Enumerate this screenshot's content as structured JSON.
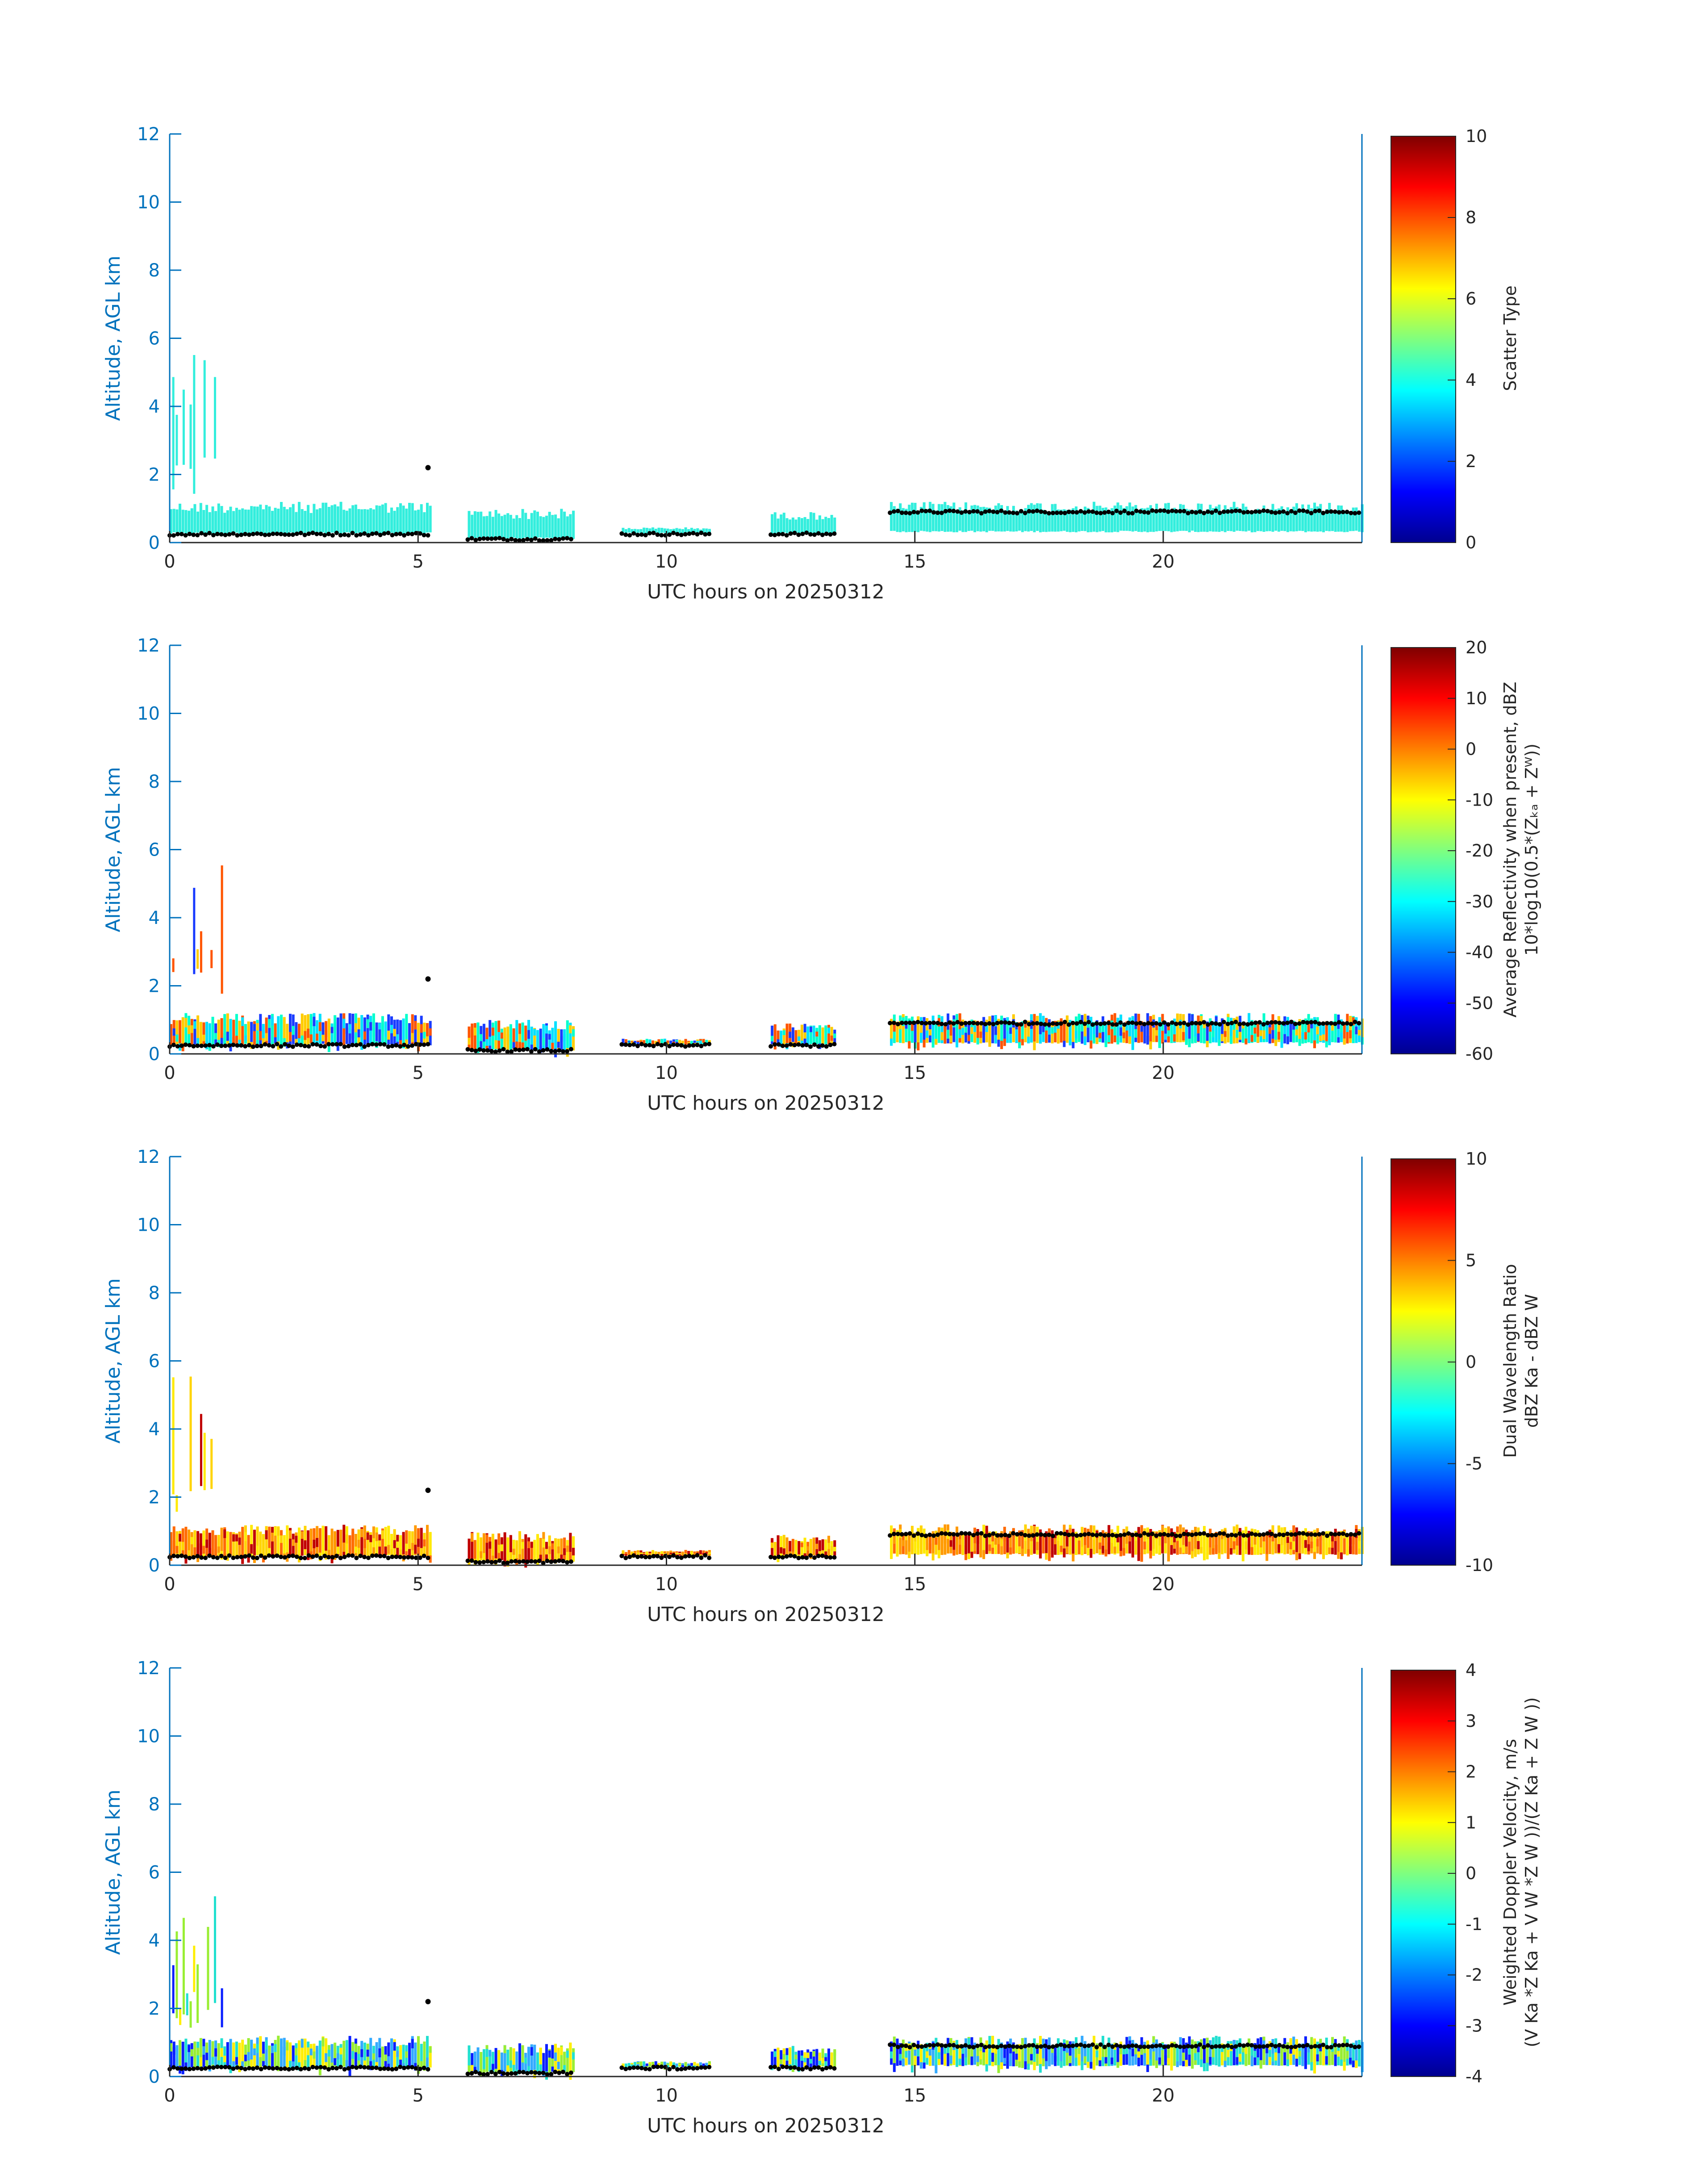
{
  "chart_data": [
    {
      "type": "heatmap",
      "xlabel": "UTC hours on 20250312",
      "ylabel": "Altitude, AGL km",
      "xlim": [
        0,
        24
      ],
      "ylim": [
        0,
        12
      ],
      "xticks": [
        "0",
        "5",
        "10",
        "15",
        "20"
      ],
      "yticks": [
        "0",
        "2",
        "4",
        "6",
        "8",
        "10",
        "12"
      ],
      "colorbar": {
        "label_lines": [
          "Scatter Type"
        ],
        "ticks": [
          "0",
          "2",
          "4",
          "6",
          "8",
          "10"
        ],
        "range": [
          0,
          10
        ],
        "colormap": "jet"
      }
    },
    {
      "type": "heatmap",
      "xlabel": "UTC hours on 20250312",
      "ylabel": "Altitude, AGL km",
      "xlim": [
        0,
        24
      ],
      "ylim": [
        0,
        12
      ],
      "xticks": [
        "0",
        "5",
        "10",
        "15",
        "20"
      ],
      "yticks": [
        "0",
        "2",
        "4",
        "6",
        "8",
        "10",
        "12"
      ],
      "colorbar": {
        "label_lines": [
          "Average Reflectivity when present, dBZ",
          "10*log10(0.5*(Zₖₐ + Zᵂ))"
        ],
        "ticks": [
          "-60",
          "-50",
          "-40",
          "-30",
          "-20",
          "-10",
          "0",
          "10",
          "20"
        ],
        "range": [
          -60,
          20
        ],
        "colormap": "jet"
      }
    },
    {
      "type": "heatmap",
      "xlabel": "UTC hours on 20250312",
      "ylabel": "Altitude, AGL km",
      "xlim": [
        0,
        24
      ],
      "ylim": [
        0,
        12
      ],
      "xticks": [
        "0",
        "5",
        "10",
        "15",
        "20"
      ],
      "yticks": [
        "0",
        "2",
        "4",
        "6",
        "8",
        "10",
        "12"
      ],
      "colorbar": {
        "label_lines": [
          "Dual Wavelength Ratio",
          "dBZ Ka - dBZ W"
        ],
        "ticks": [
          "-10",
          "-5",
          "0",
          "5",
          "10"
        ],
        "range": [
          -10,
          10
        ],
        "colormap": "jet"
      }
    },
    {
      "type": "heatmap",
      "xlabel": "UTC hours on 20250312",
      "ylabel": "Altitude, AGL km",
      "xlim": [
        0,
        24
      ],
      "ylim": [
        0,
        12
      ],
      "xticks": [
        "0",
        "5",
        "10",
        "15",
        "20"
      ],
      "yticks": [
        "0",
        "2",
        "4",
        "6",
        "8",
        "10",
        "12"
      ],
      "colorbar": {
        "label_lines": [
          "Weighted Doppler Velocity, m/s",
          "(V Ka *Z Ka + V W *Z W ))/(Z Ka + Z W ))"
        ],
        "ticks": [
          "-4",
          "-3",
          "-2",
          "-1",
          "0",
          "1",
          "2",
          "3",
          "4"
        ],
        "range": [
          -4,
          4
        ],
        "colormap": "jet"
      }
    }
  ],
  "echo_segments": [
    {
      "t0": 0.0,
      "t1": 5.25,
      "base_km": 0.25,
      "top_km": 1.2
    },
    {
      "t0": 6.0,
      "t1": 8.1,
      "base_km": 0.1,
      "top_km": 1.0
    },
    {
      "t0": 9.1,
      "t1": 10.9,
      "base_km": 0.25,
      "top_km": 0.45
    },
    {
      "t0": 12.1,
      "t1": 13.4,
      "base_km": 0.25,
      "top_km": 0.9
    },
    {
      "t0": 14.5,
      "t1": 24.0,
      "base_km": 0.3,
      "top_km": 1.2
    }
  ],
  "plume": {
    "t0": 0.05,
    "t1": 1.1,
    "top_km": 6.3
  },
  "panel_colors": {
    "scatter": "#33eedd",
    "reflectivity": [
      "#1a3cff",
      "#00e0ff",
      "#ffcc00",
      "#ff5500",
      "#00ffcc"
    ],
    "dwr": [
      "#ffd400",
      "#ff9a00",
      "#ffea00",
      "#ff6a00",
      "#c00000"
    ],
    "velocity": [
      "#99ee33",
      "#22e0d0",
      "#ffee00",
      "#33aaff",
      "#0a1fff"
    ]
  },
  "colorbar_stops": [
    "#00008f",
    "#0000ff",
    "#007fff",
    "#00ffff",
    "#7fff7f",
    "#ffff00",
    "#ff7f00",
    "#ff0000",
    "#7f0000"
  ],
  "cloud_base_color": "#000000"
}
